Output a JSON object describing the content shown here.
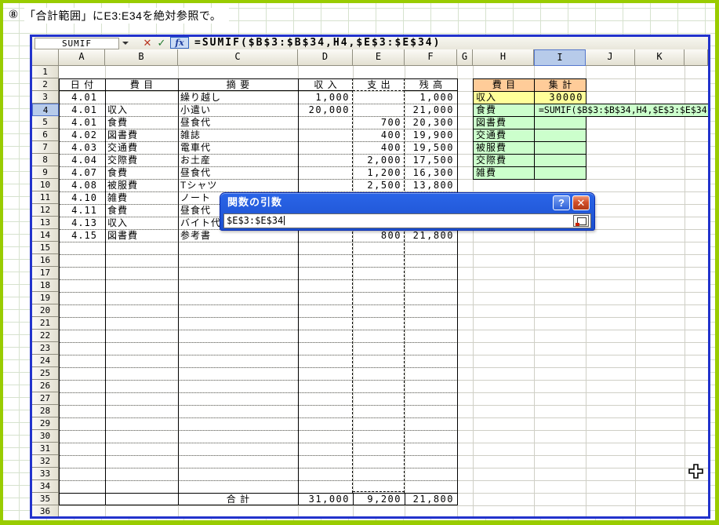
{
  "note": {
    "number": "⑧",
    "text": "「合計範囲」にE3:E34を絶対参照で。"
  },
  "formula_bar": {
    "name_box": "SUMIF",
    "cancel_label": "✕",
    "enter_label": "✓",
    "fx_label": "fx",
    "formula": "=SUMIF($B$3:$B$34,H4,$E$3:$E$34)"
  },
  "sheet": {
    "column_labels": [
      "A",
      "B",
      "C",
      "D",
      "E",
      "F",
      "G",
      "H",
      "I",
      "J",
      "K"
    ],
    "row_count": 36,
    "selected_column": "I",
    "selected_row": 4
  },
  "ledger": {
    "headers": [
      "日付",
      "費目",
      "摘要",
      "収入",
      "支出",
      "残高"
    ],
    "rows": [
      {
        "n": 3,
        "date": "4.01",
        "item": "",
        "desc": "繰り越し",
        "income": "1,000",
        "expense": "",
        "balance": "1,000"
      },
      {
        "n": 4,
        "date": "4.01",
        "item": "収入",
        "desc": "小遣い",
        "income": "20,000",
        "expense": "",
        "balance": "21,000"
      },
      {
        "n": 5,
        "date": "4.01",
        "item": "食費",
        "desc": "昼食代",
        "income": "",
        "expense": "700",
        "balance": "20,300"
      },
      {
        "n": 6,
        "date": "4.02",
        "item": "図書費",
        "desc": "雑誌",
        "income": "",
        "expense": "400",
        "balance": "19,900"
      },
      {
        "n": 7,
        "date": "4.03",
        "item": "交通費",
        "desc": "電車代",
        "income": "",
        "expense": "400",
        "balance": "19,500"
      },
      {
        "n": 8,
        "date": "4.04",
        "item": "交際費",
        "desc": "お土産",
        "income": "",
        "expense": "2,000",
        "balance": "17,500"
      },
      {
        "n": 9,
        "date": "4.07",
        "item": "食費",
        "desc": "昼食代",
        "income": "",
        "expense": "1,200",
        "balance": "16,300"
      },
      {
        "n": 10,
        "date": "4.08",
        "item": "被服費",
        "desc": "Tシャツ",
        "income": "",
        "expense": "2,500",
        "balance": "13,800"
      },
      {
        "n": 11,
        "date": "4.10",
        "item": "雑費",
        "desc": "ノート",
        "income": "",
        "expense": "",
        "balance": ""
      },
      {
        "n": 12,
        "date": "4.11",
        "item": "食費",
        "desc": "昼食代",
        "income": "",
        "expense": "",
        "balance": ""
      },
      {
        "n": 13,
        "date": "4.13",
        "item": "収入",
        "desc": "バイト代",
        "income": "",
        "expense": "",
        "balance": ""
      },
      {
        "n": 14,
        "date": "4.15",
        "item": "図書費",
        "desc": "参考書",
        "income": "",
        "expense": "800",
        "balance": "21,800"
      }
    ],
    "total": {
      "label": "合計",
      "income": "31,000",
      "expense": "9,200",
      "balance": "21,800"
    }
  },
  "summary_table": {
    "headers": [
      "費目",
      "集計"
    ],
    "rows": [
      {
        "n": 3,
        "name": "収入",
        "value": "30000"
      },
      {
        "n": 4,
        "name": "食費",
        "value": ""
      },
      {
        "n": 5,
        "name": "図書費",
        "value": ""
      },
      {
        "n": 6,
        "name": "交通費",
        "value": ""
      },
      {
        "n": 7,
        "name": "被服費",
        "value": ""
      },
      {
        "n": 8,
        "name": "交際費",
        "value": ""
      },
      {
        "n": 9,
        "name": "雑費",
        "value": ""
      }
    ],
    "editing_formula": "=SUMIF($B$3:$B$34,H4,$E$3:$E$34)"
  },
  "dialog": {
    "title": "関数の引数",
    "input_value": "$E$3:$E$34",
    "help_label": "?",
    "close_label": "✕"
  },
  "colors": {
    "header_cyan": "#CCFFFF",
    "summary_orange": "#FFCC99",
    "income_yellow": "#FFFF99",
    "category_green": "#CCFFCC",
    "window_border_blue": "#2233CC",
    "frame_green": "#99CC00",
    "dialog_blue": "#2257D8",
    "close_red": "#D6492A"
  }
}
